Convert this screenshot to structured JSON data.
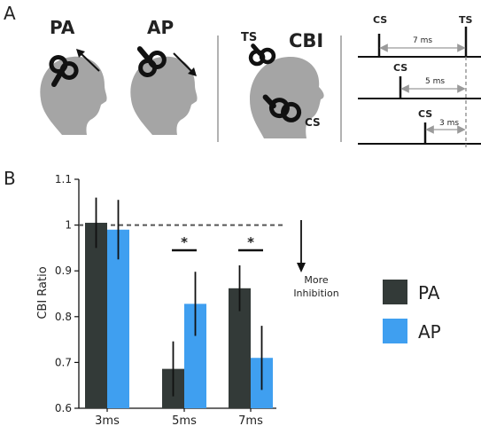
{
  "panels": {
    "a_label": "A",
    "b_label": "B"
  },
  "heads": {
    "pa_label": "PA",
    "ap_label": "AP",
    "cbi_label": "CBI",
    "ts_label": "TS",
    "cs_label": "CS"
  },
  "timing": {
    "rows": [
      {
        "cs": "CS",
        "interval": "7 ms",
        "ts": "TS"
      },
      {
        "cs": "CS",
        "interval": "5 ms"
      },
      {
        "cs": "CS",
        "interval": "3 ms"
      }
    ]
  },
  "annotation": {
    "line1": "More",
    "line2": "Inhibition"
  },
  "significance": "*",
  "colors": {
    "pa": "#333a38",
    "ap": "#3f9ff0",
    "head": "#a5a5a5",
    "ap_text": "#3f9ff0",
    "pa_text": "#2f3a3a"
  },
  "chart_data": {
    "type": "bar",
    "categories": [
      "3ms",
      "5ms",
      "7ms"
    ],
    "ylabel": "CBI Ratio",
    "xlabel": "",
    "ylim": [
      0.6,
      1.1
    ],
    "yticks": [
      "0.6",
      "0.7",
      "0.8",
      "0.9",
      "1",
      "1.1"
    ],
    "reference_line": 1.0,
    "legend_position": "right",
    "series": [
      {
        "name": "PA",
        "values": [
          1.005,
          0.686,
          0.862
        ],
        "errors": [
          0.055,
          0.06,
          0.05
        ],
        "color": "#333a38"
      },
      {
        "name": "AP",
        "values": [
          0.99,
          0.828,
          0.71
        ],
        "errors": [
          0.065,
          0.07,
          0.07
        ],
        "color": "#3f9ff0"
      }
    ],
    "significant": [
      "5ms",
      "7ms"
    ]
  }
}
